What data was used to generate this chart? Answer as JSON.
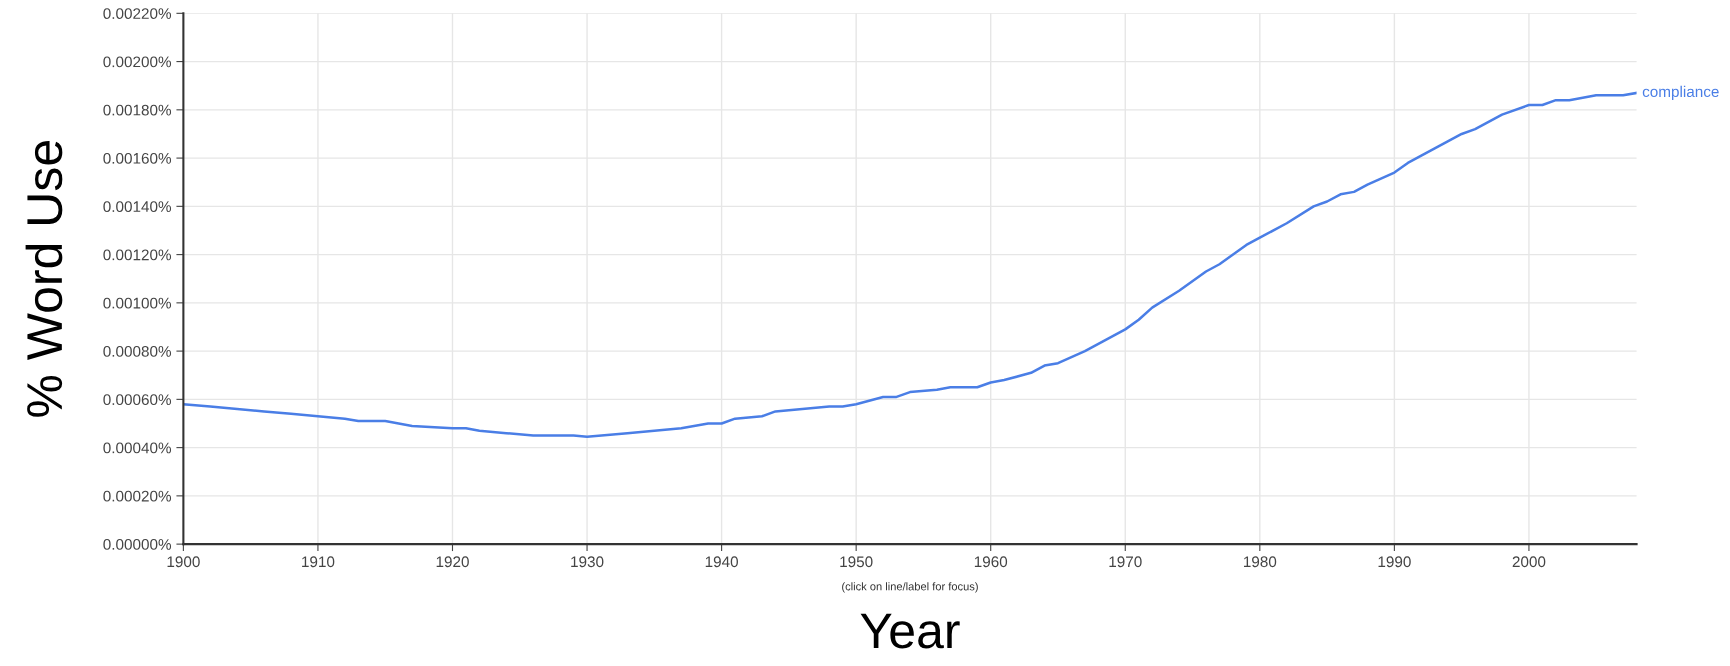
{
  "chart_data": {
    "type": "line",
    "xlabel": "Year",
    "ylabel": "% Word Use",
    "annotations": [
      "(click on line/label for focus)"
    ],
    "series": [
      {
        "name": "compliance",
        "color": "#4a7ee6",
        "x": [
          1900,
          1902,
          1904,
          1906,
          1908,
          1910,
          1912,
          1913,
          1915,
          1917,
          1920,
          1921,
          1922,
          1924,
          1926,
          1929,
          1930,
          1933,
          1935,
          1937,
          1939,
          1940,
          1941,
          1943,
          1944,
          1946,
          1948,
          1949,
          1950,
          1952,
          1953,
          1954,
          1956,
          1957,
          1959,
          1960,
          1961,
          1963,
          1964,
          1965,
          1967,
          1968,
          1969,
          1970,
          1971,
          1972,
          1974,
          1976,
          1977,
          1979,
          1980,
          1982,
          1984,
          1985,
          1986,
          1987,
          1988,
          1990,
          1991,
          1992,
          1993,
          1994,
          1995,
          1996,
          1998,
          2000,
          2001,
          2002,
          2003,
          2005,
          2006,
          2007,
          2008
        ],
        "values": [
          0.00058,
          0.00057,
          0.00056,
          0.00055,
          0.00054,
          0.00053,
          0.00052,
          0.00051,
          0.00051,
          0.00049,
          0.00048,
          0.00048,
          0.00047,
          0.00046,
          0.00045,
          0.00045,
          0.000445,
          0.00046,
          0.00047,
          0.00048,
          0.0005,
          0.0005,
          0.00052,
          0.00053,
          0.00055,
          0.00056,
          0.00057,
          0.00057,
          0.00058,
          0.00061,
          0.00061,
          0.00063,
          0.00064,
          0.00065,
          0.00065,
          0.00067,
          0.00068,
          0.00071,
          0.00074,
          0.00075,
          0.0008,
          0.00083,
          0.00086,
          0.00089,
          0.00093,
          0.00098,
          0.00105,
          0.00113,
          0.00116,
          0.00124,
          0.00127,
          0.00133,
          0.0014,
          0.00142,
          0.00145,
          0.00146,
          0.00149,
          0.00154,
          0.00158,
          0.00161,
          0.00164,
          0.00167,
          0.0017,
          0.00172,
          0.00178,
          0.00182,
          0.00182,
          0.00184,
          0.00184,
          0.00186,
          0.00186,
          0.00186,
          0.00187
        ]
      }
    ],
    "xlim": [
      1900,
      2008
    ],
    "xticks": [
      1900,
      1910,
      1920,
      1930,
      1940,
      1950,
      1960,
      1970,
      1980,
      1990,
      2000
    ],
    "ylim": [
      0,
      0.0022
    ],
    "yticks": [
      {
        "value": 0,
        "label": "0.00000%"
      },
      {
        "value": 0.0002,
        "label": "0.00020%"
      },
      {
        "value": 0.0004,
        "label": "0.00040%"
      },
      {
        "value": 0.0006,
        "label": "0.00060%"
      },
      {
        "value": 0.0008,
        "label": "0.00080%"
      },
      {
        "value": 0.001,
        "label": "0.00100%"
      },
      {
        "value": 0.0012,
        "label": "0.00120%"
      },
      {
        "value": 0.0014,
        "label": "0.00140%"
      },
      {
        "value": 0.0016,
        "label": "0.00160%"
      },
      {
        "value": 0.0018,
        "label": "0.00180%"
      },
      {
        "value": 0.002,
        "label": "0.00200%"
      },
      {
        "value": 0.0022,
        "label": "0.00220%"
      }
    ],
    "grid": true
  }
}
